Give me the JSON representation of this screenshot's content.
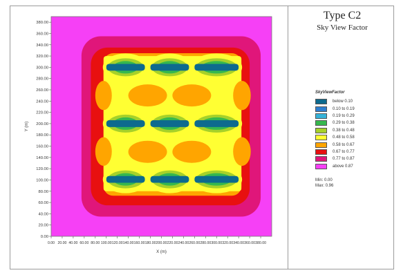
{
  "header": {
    "title": "Type C2",
    "subtitle": "Sky View Factor"
  },
  "legend": {
    "title": "SkyViewFactor",
    "items": [
      {
        "label": "below 0.10",
        "color": "#0d6a8e"
      },
      {
        "label": "0.10 to 0.19",
        "color": "#2e7fd0"
      },
      {
        "label": "0.19 to 0.29",
        "color": "#36b2d8"
      },
      {
        "label": "0.29 to 0.38",
        "color": "#36b84e"
      },
      {
        "label": "0.38 to 0.48",
        "color": "#a6d12a"
      },
      {
        "label": "0.48 to 0.58",
        "color": "#ffff33"
      },
      {
        "label": "0.58 to 0.67",
        "color": "#ffa500"
      },
      {
        "label": "0.67 to 0.77",
        "color": "#e81010"
      },
      {
        "label": "0.77 to 0.87",
        "color": "#e0167a"
      },
      {
        "label": "above 0.87",
        "color": "#f640f6"
      }
    ]
  },
  "stats": {
    "min": "Min: 0.00",
    "max": "Max: 0.96"
  },
  "chart_data": {
    "type": "heatmap",
    "title": "",
    "xlabel": "X (m)",
    "ylabel": "Y (m)",
    "xlim": [
      0,
      400
    ],
    "ylim": [
      0,
      390
    ],
    "xticks": [
      "0.00",
      "20.00",
      "40.00",
      "60.00",
      "80.00",
      "100.00",
      "120.00",
      "140.00",
      "160.00",
      "180.00",
      "200.00",
      "220.00",
      "240.00",
      "260.00",
      "280.00",
      "300.00",
      "320.00",
      "340.00",
      "360.00",
      "380.00"
    ],
    "yticks": [
      "0.00",
      "20.00",
      "40.00",
      "60.00",
      "80.00",
      "100.00",
      "120.00",
      "140.00",
      "160.00",
      "180.00",
      "200.00",
      "220.00",
      "240.00",
      "260.00",
      "280.00",
      "300.00",
      "320.00",
      "340.00",
      "360.00",
      "380.00"
    ],
    "background_class": "above 0.87",
    "buildings": [
      {
        "x": [
          100,
          170
        ],
        "y": [
          95,
          107
        ]
      },
      {
        "x": [
          180,
          250
        ],
        "y": [
          95,
          107
        ]
      },
      {
        "x": [
          260,
          340
        ],
        "y": [
          95,
          107
        ]
      },
      {
        "x": [
          100,
          170
        ],
        "y": [
          194,
          206
        ]
      },
      {
        "x": [
          180,
          250
        ],
        "y": [
          194,
          206
        ]
      },
      {
        "x": [
          260,
          340
        ],
        "y": [
          194,
          206
        ]
      },
      {
        "x": [
          100,
          170
        ],
        "y": [
          294,
          306
        ]
      },
      {
        "x": [
          180,
          250
        ],
        "y": [
          294,
          306
        ]
      },
      {
        "x": [
          260,
          340
        ],
        "y": [
          294,
          306
        ]
      }
    ],
    "zones": [
      {
        "class": "0.77 to 0.87",
        "x": [
          55,
          380
        ],
        "y": [
          35,
          355
        ]
      },
      {
        "class": "0.67 to 0.77",
        "x": [
          72,
          360
        ],
        "y": [
          55,
          335
        ]
      },
      {
        "class": "0.58 to 0.67",
        "x": [
          95,
          345
        ],
        "y": [
          72,
          325
        ]
      },
      {
        "class": "0.48 to 0.58",
        "x": [
          95,
          345
        ],
        "y": [
          80,
          320
        ]
      }
    ],
    "stats": {
      "min": 0.0,
      "max": 0.96
    }
  }
}
